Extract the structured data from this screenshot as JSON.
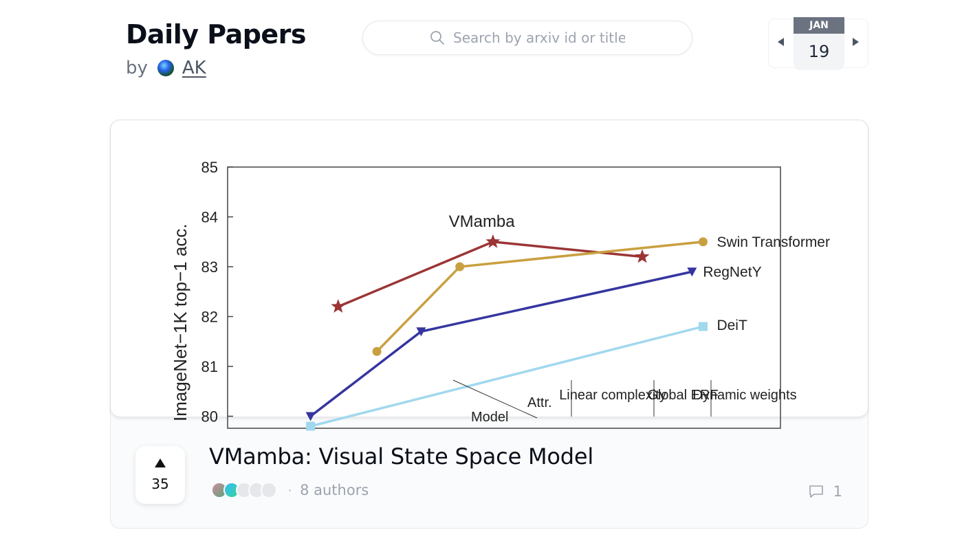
{
  "header": {
    "title": "Daily Papers",
    "by_label": "by",
    "author": "AK"
  },
  "search": {
    "placeholder": "Search by arxiv id or title"
  },
  "date": {
    "month": "JAN",
    "day": "19"
  },
  "paper": {
    "title": "VMamba: Visual State Space Model",
    "upvotes": "35",
    "authors_label": "8 authors",
    "separator": "·",
    "comments": "1"
  },
  "chart_data": {
    "type": "line",
    "ylabel": "ImageNet−1K top−1 acc.",
    "ylim": [
      80,
      85
    ],
    "yticks": [
      "85",
      "84",
      "83",
      "82",
      "81",
      "80"
    ],
    "series": [
      {
        "name": "VMamba",
        "marker": "star",
        "color": "#9b3535",
        "points": [
          [
            0.2,
            82.2
          ],
          [
            0.48,
            83.5
          ],
          [
            0.75,
            83.2
          ]
        ]
      },
      {
        "name": "Swin Transformer",
        "marker": "circle",
        "color": "#c9a040",
        "points": [
          [
            0.27,
            81.3
          ],
          [
            0.42,
            83.0
          ],
          [
            0.86,
            83.5
          ]
        ]
      },
      {
        "name": "RegNetY",
        "marker": "triangle-down",
        "color": "#3535a0",
        "points": [
          [
            0.15,
            80.0
          ],
          [
            0.35,
            81.7
          ],
          [
            0.84,
            82.9
          ]
        ]
      },
      {
        "name": "DeiT",
        "marker": "square",
        "color": "#a0d8ee",
        "points": [
          [
            0.15,
            79.8
          ],
          [
            0.86,
            81.8
          ]
        ]
      }
    ],
    "table_headers": [
      "Attr.",
      "Model",
      "Linear complexity",
      "Global ERF",
      "Dynamic weights"
    ]
  }
}
